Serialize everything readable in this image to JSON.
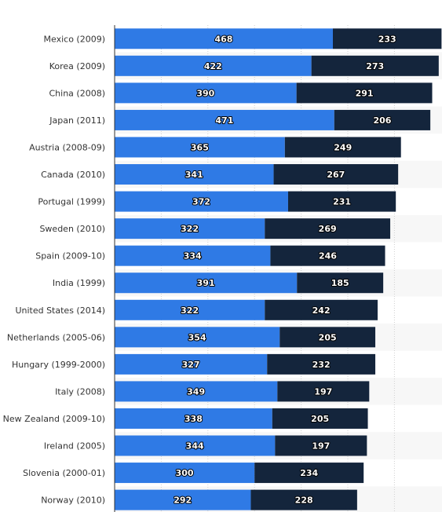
{
  "chart_data": {
    "type": "bar",
    "orientation": "horizontal",
    "stacked": true,
    "categories": [
      "Mexico (2009)",
      "Korea (2009)",
      "China (2008)",
      "Japan (2011)",
      "Austria (2008-09)",
      "Canada (2010)",
      "Portugal (1999)",
      "Sweden (2010)",
      "Spain (2009-10)",
      "India (1999)",
      "United States (2014)",
      "Netherlands (2005-06)",
      "Hungary (1999-2000)",
      "Italy (2008)",
      "New Zealand (2009-10)",
      "Ireland (2005)",
      "Slovenia (2000-01)",
      "Norway (2010)"
    ],
    "series": [
      {
        "values": [
          468,
          422,
          390,
          471,
          365,
          341,
          372,
          322,
          334,
          391,
          322,
          354,
          327,
          349,
          338,
          344,
          300,
          292
        ]
      },
      {
        "values": [
          233,
          273,
          291,
          206,
          249,
          267,
          231,
          269,
          246,
          185,
          242,
          205,
          232,
          197,
          205,
          197,
          234,
          228
        ]
      }
    ],
    "xlim": [
      0,
      700
    ],
    "grid": true,
    "colors": [
      "#2f7ae5",
      "#14253c"
    ],
    "row_band_color": "#f7f7f7",
    "grid_color": "#d0d0d0",
    "axis_color": "#333333",
    "title": "",
    "xlabel": "",
    "ylabel": ""
  }
}
